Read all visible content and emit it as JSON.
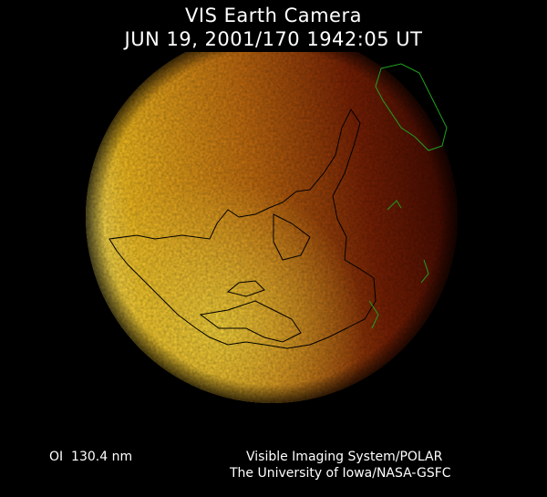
{
  "header": {
    "title": "VIS Earth Camera",
    "timestamp": "JUN 19, 2001/170 1942:05 UT"
  },
  "footer": {
    "wavelength": "OI  130.4 nm",
    "credit_line1": "Visible Imaging System/POLAR",
    "credit_line2": "The University of Iowa/NASA-GSFC"
  },
  "colors": {
    "background": "#000000",
    "dayglow_bright": "#ffe040",
    "dayglow_mid": "#d08010",
    "nightside": "#4a0800",
    "coastline": "#000000",
    "coastline_night": "#20a020"
  }
}
